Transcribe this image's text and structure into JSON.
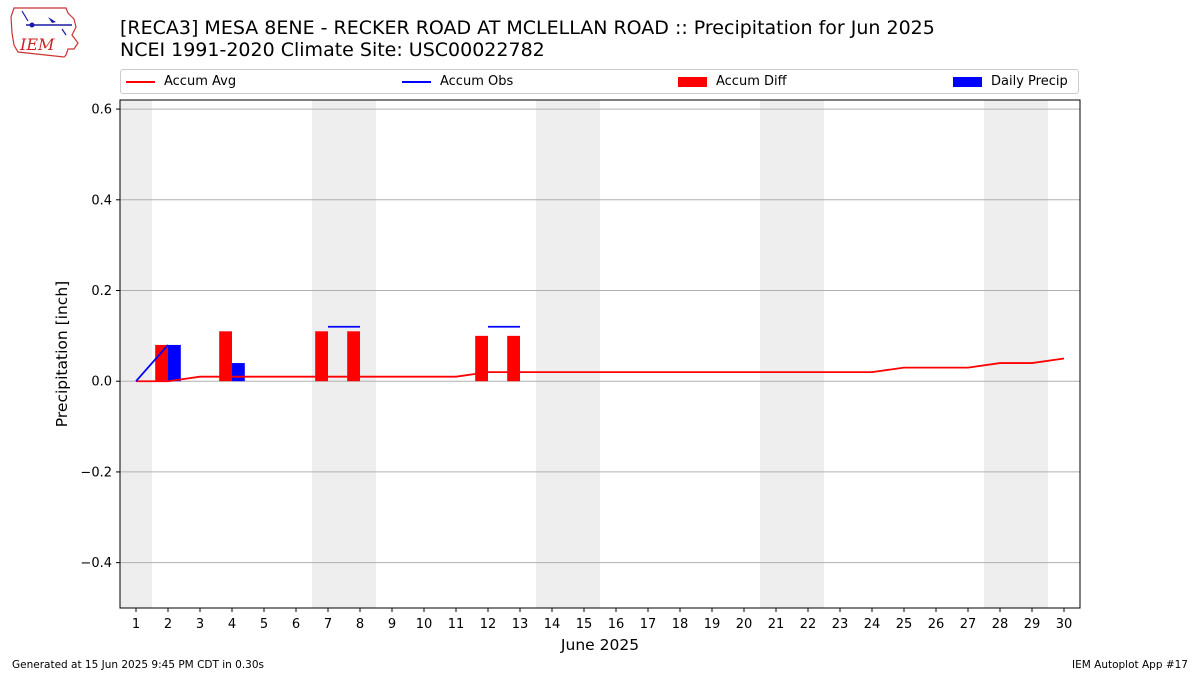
{
  "header": {
    "title_line1": "[RECA3] MESA 8ENE - RECKER ROAD AT MCLELLAN ROAD :: Precipitation for Jun 2025",
    "title_line2": "NCEI 1991-2020 Climate Site: USC00022782",
    "logo_text": "IEM"
  },
  "legend": {
    "items": [
      {
        "label": "Accum Avg",
        "kind": "line",
        "color": "#ff0000"
      },
      {
        "label": "Accum Obs",
        "kind": "line",
        "color": "#0000ff"
      },
      {
        "label": "Accum Diff",
        "kind": "bar",
        "color": "#ff0000"
      },
      {
        "label": "Daily Precip",
        "kind": "bar",
        "color": "#0000ff"
      }
    ]
  },
  "footer": {
    "left": "Generated at 15 Jun 2025 9:45 PM CDT in 0.30s",
    "right": "IEM Autoplot App #17"
  },
  "chart_data": {
    "type": "bar",
    "xlabel": "June 2025",
    "ylabel": "Precipitation [inch]",
    "xlim": [
      0.5,
      30.5
    ],
    "ylim": [
      -0.5,
      0.62
    ],
    "yticks": [
      -0.4,
      -0.2,
      0.0,
      0.2,
      0.4,
      0.6
    ],
    "ytick_labels": [
      "−0.4",
      "−0.2",
      "0.0",
      "0.2",
      "0.4",
      "0.6"
    ],
    "x": [
      1,
      2,
      3,
      4,
      5,
      6,
      7,
      8,
      9,
      10,
      11,
      12,
      13,
      14,
      15,
      16,
      17,
      18,
      19,
      20,
      21,
      22,
      23,
      24,
      25,
      26,
      27,
      28,
      29,
      30
    ],
    "weekend_shading": [
      [
        0.5,
        1.5
      ],
      [
        6.5,
        8.5
      ],
      [
        13.5,
        15.5
      ],
      [
        20.5,
        22.5
      ],
      [
        27.5,
        29.5
      ]
    ],
    "grid": "horizontal",
    "series": [
      {
        "name": "Accum Avg",
        "type": "line",
        "color": "#ff0000",
        "values": [
          0.0,
          0.0,
          0.01,
          0.01,
          0.01,
          0.01,
          0.01,
          0.01,
          0.01,
          0.01,
          0.01,
          0.02,
          0.02,
          0.02,
          0.02,
          0.02,
          0.02,
          0.02,
          0.02,
          0.02,
          0.02,
          0.02,
          0.02,
          0.02,
          0.03,
          0.03,
          0.03,
          0.04,
          0.04,
          0.05
        ]
      },
      {
        "name": "Accum Obs",
        "type": "line",
        "color": "#0000ff",
        "points": [
          [
            1,
            0.0
          ],
          [
            2,
            0.08
          ]
        ]
      },
      {
        "name": "Accum Obs",
        "type": "segments",
        "color": "#0000ff",
        "segments": [
          [
            7,
            8,
            0.12
          ],
          [
            12,
            13,
            0.12
          ]
        ]
      },
      {
        "name": "Accum Diff",
        "type": "bar",
        "color": "#ff0000",
        "points": [
          [
            2,
            0.08
          ],
          [
            4,
            0.11
          ],
          [
            7,
            0.11
          ],
          [
            8,
            0.11
          ],
          [
            12,
            0.1
          ],
          [
            13,
            0.1
          ]
        ]
      },
      {
        "name": "Daily Precip",
        "type": "bar",
        "color": "#0000ff",
        "points": [
          [
            2,
            0.08
          ],
          [
            4,
            0.04
          ]
        ]
      }
    ]
  }
}
